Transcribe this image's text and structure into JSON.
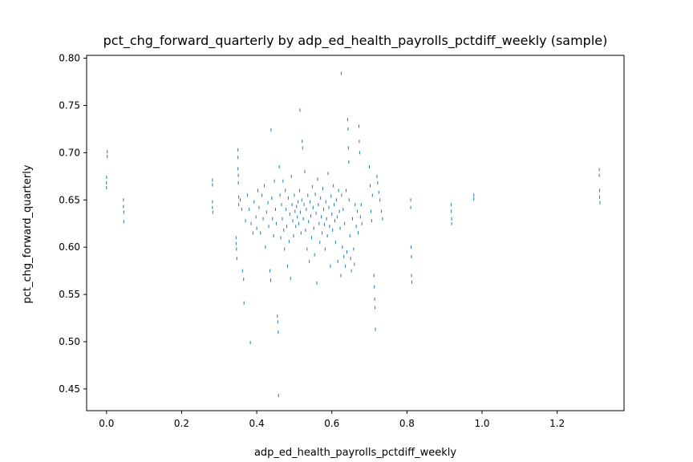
{
  "chart_data": {
    "type": "scatter",
    "title": "pct_chg_forward_quarterly by adp_ed_health_payrolls_pctdiff_weekly (sample)",
    "xlabel": "adp_ed_health_payrolls_pctdiff_weekly",
    "ylabel": "pct_chg_forward_quarterly",
    "xlim": [
      -0.053,
      1.378
    ],
    "ylim": [
      0.427,
      0.803
    ],
    "xticks": [
      0.0,
      0.2,
      0.4,
      0.6,
      0.8,
      1.0,
      1.2
    ],
    "xtick_labels": [
      "0.0",
      "0.2",
      "0.4",
      "0.6",
      "0.8",
      "1.0",
      "1.2"
    ],
    "yticks": [
      0.45,
      0.5,
      0.55,
      0.6,
      0.65,
      0.7,
      0.75,
      0.8
    ],
    "ytick_labels": [
      "0.45",
      "0.50",
      "0.55",
      "0.60",
      "0.65",
      "0.70",
      "0.75",
      "0.80"
    ],
    "marker_color": "#1f77b4",
    "grid": false,
    "points": [
      [
        0.0,
        0.674
      ],
      [
        0.0,
        0.668
      ],
      [
        0.0,
        0.663
      ],
      [
        0.002,
        0.701
      ],
      [
        0.002,
        0.696
      ],
      [
        0.045,
        0.65
      ],
      [
        0.045,
        0.643
      ],
      [
        0.046,
        0.637
      ],
      [
        0.046,
        0.627
      ],
      [
        0.282,
        0.671
      ],
      [
        0.282,
        0.666
      ],
      [
        0.282,
        0.648
      ],
      [
        0.282,
        0.642
      ],
      [
        0.283,
        0.637
      ],
      [
        0.345,
        0.61
      ],
      [
        0.345,
        0.604
      ],
      [
        0.346,
        0.598
      ],
      [
        0.347,
        0.588
      ],
      [
        0.35,
        0.703
      ],
      [
        0.35,
        0.695
      ],
      [
        0.35,
        0.683
      ],
      [
        0.351,
        0.676
      ],
      [
        0.351,
        0.668
      ],
      [
        0.352,
        0.653
      ],
      [
        0.352,
        0.645
      ],
      [
        0.356,
        0.65
      ],
      [
        0.36,
        0.64
      ],
      [
        0.362,
        0.575
      ],
      [
        0.365,
        0.566
      ],
      [
        0.366,
        0.541
      ],
      [
        0.37,
        0.628
      ],
      [
        0.375,
        0.655
      ],
      [
        0.38,
        0.64
      ],
      [
        0.383,
        0.499
      ],
      [
        0.385,
        0.625
      ],
      [
        0.39,
        0.615
      ],
      [
        0.393,
        0.648
      ],
      [
        0.398,
        0.632
      ],
      [
        0.4,
        0.62
      ],
      [
        0.403,
        0.66
      ],
      [
        0.406,
        0.642
      ],
      [
        0.41,
        0.615
      ],
      [
        0.414,
        0.655
      ],
      [
        0.417,
        0.63
      ],
      [
        0.42,
        0.665
      ],
      [
        0.423,
        0.6
      ],
      [
        0.426,
        0.637
      ],
      [
        0.43,
        0.647
      ],
      [
        0.432,
        0.622
      ],
      [
        0.435,
        0.575
      ],
      [
        0.437,
        0.565
      ],
      [
        0.438,
        0.724
      ],
      [
        0.44,
        0.652
      ],
      [
        0.442,
        0.63
      ],
      [
        0.445,
        0.612
      ],
      [
        0.447,
        0.67
      ],
      [
        0.45,
        0.64
      ],
      [
        0.452,
        0.625
      ],
      [
        0.455,
        0.527
      ],
      [
        0.456,
        0.521
      ],
      [
        0.457,
        0.51
      ],
      [
        0.458,
        0.443
      ],
      [
        0.46,
        0.685
      ],
      [
        0.462,
        0.655
      ],
      [
        0.464,
        0.61
      ],
      [
        0.466,
        0.645
      ],
      [
        0.468,
        0.63
      ],
      [
        0.47,
        0.67
      ],
      [
        0.472,
        0.618
      ],
      [
        0.474,
        0.598
      ],
      [
        0.476,
        0.66
      ],
      [
        0.478,
        0.64
      ],
      [
        0.48,
        0.622
      ],
      [
        0.482,
        0.58
      ],
      [
        0.484,
        0.652
      ],
      [
        0.486,
        0.606
      ],
      [
        0.488,
        0.635
      ],
      [
        0.49,
        0.567
      ],
      [
        0.492,
        0.675
      ],
      [
        0.494,
        0.645
      ],
      [
        0.496,
        0.628
      ],
      [
        0.498,
        0.612
      ],
      [
        0.5,
        0.655
      ],
      [
        0.502,
        0.638
      ],
      [
        0.504,
        0.622
      ],
      [
        0.506,
        0.643
      ],
      [
        0.508,
        0.632
      ],
      [
        0.51,
        0.648
      ],
      [
        0.512,
        0.625
      ],
      [
        0.514,
        0.66
      ],
      [
        0.515,
        0.745
      ],
      [
        0.516,
        0.637
      ],
      [
        0.518,
        0.615
      ],
      [
        0.52,
        0.65
      ],
      [
        0.521,
        0.712
      ],
      [
        0.522,
        0.705
      ],
      [
        0.524,
        0.63
      ],
      [
        0.526,
        0.645
      ],
      [
        0.528,
        0.68
      ],
      [
        0.53,
        0.618
      ],
      [
        0.532,
        0.64
      ],
      [
        0.534,
        0.598
      ],
      [
        0.536,
        0.655
      ],
      [
        0.538,
        0.627
      ],
      [
        0.54,
        0.585
      ],
      [
        0.542,
        0.648
      ],
      [
        0.544,
        0.633
      ],
      [
        0.546,
        0.61
      ],
      [
        0.548,
        0.664
      ],
      [
        0.55,
        0.642
      ],
      [
        0.552,
        0.62
      ],
      [
        0.554,
        0.592
      ],
      [
        0.556,
        0.656
      ],
      [
        0.558,
        0.636
      ],
      [
        0.56,
        0.562
      ],
      [
        0.562,
        0.672
      ],
      [
        0.564,
        0.645
      ],
      [
        0.566,
        0.625
      ],
      [
        0.568,
        0.605
      ],
      [
        0.57,
        0.652
      ],
      [
        0.572,
        0.632
      ],
      [
        0.574,
        0.615
      ],
      [
        0.576,
        0.662
      ],
      [
        0.578,
        0.64
      ],
      [
        0.58,
        0.624
      ],
      [
        0.582,
        0.598
      ],
      [
        0.584,
        0.648
      ],
      [
        0.586,
        0.63
      ],
      [
        0.588,
        0.612
      ],
      [
        0.59,
        0.678
      ],
      [
        0.592,
        0.642
      ],
      [
        0.594,
        0.622
      ],
      [
        0.596,
        0.58
      ],
      [
        0.598,
        0.654
      ],
      [
        0.6,
        0.635
      ],
      [
        0.602,
        0.618
      ],
      [
        0.604,
        0.665
      ],
      [
        0.606,
        0.645
      ],
      [
        0.608,
        0.628
      ],
      [
        0.61,
        0.605
      ],
      [
        0.612,
        0.65
      ],
      [
        0.614,
        0.632
      ],
      [
        0.616,
        0.585
      ],
      [
        0.618,
        0.66
      ],
      [
        0.62,
        0.638
      ],
      [
        0.622,
        0.62
      ],
      [
        0.624,
        0.57
      ],
      [
        0.625,
        0.784
      ],
      [
        0.626,
        0.655
      ],
      [
        0.628,
        0.6
      ],
      [
        0.63,
        0.64
      ],
      [
        0.632,
        0.59
      ],
      [
        0.634,
        0.625
      ],
      [
        0.636,
        0.58
      ],
      [
        0.638,
        0.66
      ],
      [
        0.64,
        0.595
      ],
      [
        0.642,
        0.735
      ],
      [
        0.643,
        0.725
      ],
      [
        0.644,
        0.705
      ],
      [
        0.645,
        0.69
      ],
      [
        0.646,
        0.65
      ],
      [
        0.648,
        0.612
      ],
      [
        0.65,
        0.588
      ],
      [
        0.652,
        0.575
      ],
      [
        0.655,
        0.63
      ],
      [
        0.658,
        0.598
      ],
      [
        0.66,
        0.582
      ],
      [
        0.662,
        0.645
      ],
      [
        0.665,
        0.622
      ],
      [
        0.668,
        0.638
      ],
      [
        0.67,
        0.615
      ],
      [
        0.672,
        0.728
      ],
      [
        0.673,
        0.712
      ],
      [
        0.674,
        0.7
      ],
      [
        0.676,
        0.632
      ],
      [
        0.678,
        0.645
      ],
      [
        0.68,
        0.625
      ],
      [
        0.7,
        0.685
      ],
      [
        0.702,
        0.665
      ],
      [
        0.704,
        0.638
      ],
      [
        0.706,
        0.628
      ],
      [
        0.708,
        0.655
      ],
      [
        0.712,
        0.57
      ],
      [
        0.713,
        0.558
      ],
      [
        0.714,
        0.545
      ],
      [
        0.715,
        0.536
      ],
      [
        0.716,
        0.513
      ],
      [
        0.72,
        0.675
      ],
      [
        0.722,
        0.668
      ],
      [
        0.725,
        0.658
      ],
      [
        0.728,
        0.65
      ],
      [
        0.732,
        0.638
      ],
      [
        0.735,
        0.63
      ],
      [
        0.81,
        0.65
      ],
      [
        0.81,
        0.642
      ],
      [
        0.811,
        0.6
      ],
      [
        0.812,
        0.59
      ],
      [
        0.812,
        0.57
      ],
      [
        0.813,
        0.563
      ],
      [
        0.918,
        0.645
      ],
      [
        0.918,
        0.638
      ],
      [
        0.919,
        0.63
      ],
      [
        0.919,
        0.625
      ],
      [
        0.978,
        0.655
      ],
      [
        0.978,
        0.651
      ],
      [
        1.312,
        0.682
      ],
      [
        1.312,
        0.676
      ],
      [
        1.313,
        0.66
      ],
      [
        1.313,
        0.653
      ],
      [
        1.314,
        0.647
      ]
    ]
  }
}
